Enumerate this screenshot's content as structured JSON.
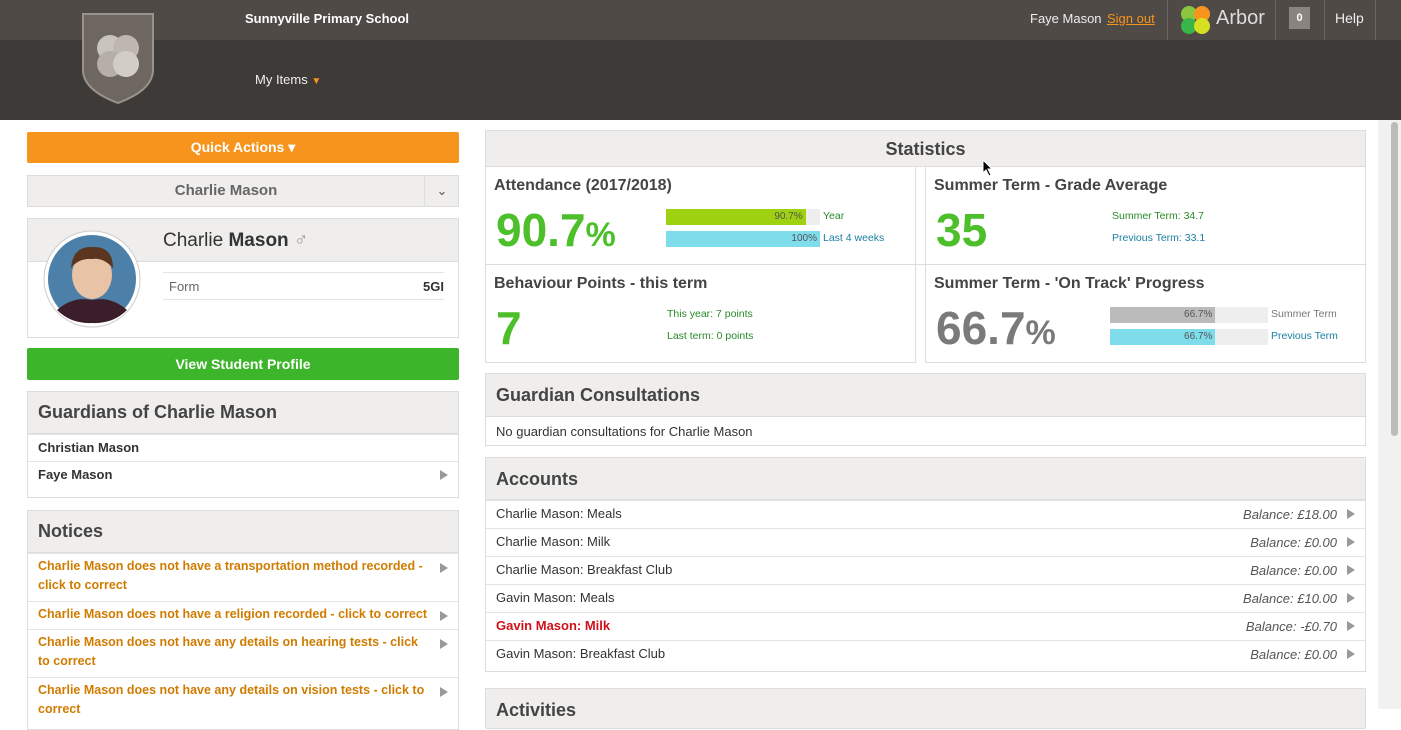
{
  "header": {
    "school": "Sunnyville Primary School",
    "nav": "My Items",
    "user": "Faye Mason",
    "sign_out": "Sign out",
    "brand": "Arbor",
    "badge": "0",
    "help": "Help"
  },
  "left": {
    "quick_actions": "Quick Actions",
    "student_select": "Charlie Mason",
    "profile": {
      "first_name": "Charlie",
      "last_name": "Mason",
      "field_label": "Form",
      "field_value": "5GI"
    },
    "view_profile": "View Student Profile",
    "guardians": {
      "title": "Guardians of Charlie Mason",
      "items": [
        "Christian Mason",
        "Faye Mason"
      ]
    },
    "notices": {
      "title": "Notices",
      "items": [
        "Charlie Mason does not have a transportation method recorded - click to correct",
        "Charlie Mason does not have a religion recorded - click to correct",
        "Charlie Mason does not have any details on hearing tests - click to correct",
        "Charlie Mason does not have any details on vision tests - click to correct"
      ]
    }
  },
  "statistics": {
    "title": "Statistics",
    "attendance": {
      "title": "Attendance (2017/2018)",
      "big": "90.7",
      "unit": "%",
      "bars": [
        {
          "value": 90.7,
          "label": "90.7%",
          "name": "Year"
        },
        {
          "value": 100,
          "label": "100%",
          "name": "Last 4 weeks"
        }
      ]
    },
    "grade": {
      "title": "Summer Term - Grade Average",
      "big": "35",
      "lines": [
        "Summer Term: 34.7",
        "Previous Term: 33.1"
      ]
    },
    "behaviour": {
      "title": "Behaviour Points - this term",
      "big": "7",
      "lines": [
        "This year: 7 points",
        "Last term: 0 points"
      ]
    },
    "progress": {
      "title": "Summer Term - 'On Track' Progress",
      "big": "66.7",
      "unit": "%",
      "bars": [
        {
          "value": 66.7,
          "label": "66.7%",
          "name": "Summer Term"
        },
        {
          "value": 66.7,
          "label": "66.7%",
          "name": "Previous Term"
        }
      ]
    }
  },
  "consultations": {
    "title": "Guardian Consultations",
    "text": "No guardian consultations for Charlie Mason"
  },
  "accounts": {
    "title": "Accounts",
    "rows": [
      {
        "name": "Charlie Mason: Meals",
        "balance": "Balance: £18.00"
      },
      {
        "name": "Charlie Mason: Milk",
        "balance": "Balance: £0.00"
      },
      {
        "name": "Charlie Mason: Breakfast Club",
        "balance": "Balance: £0.00"
      },
      {
        "name": "Gavin Mason: Meals",
        "balance": "Balance: £10.00"
      },
      {
        "name": "Gavin Mason: Milk",
        "balance": "Balance: -£0.70",
        "alert": true
      },
      {
        "name": "Gavin Mason: Breakfast Club",
        "balance": "Balance: £0.00"
      }
    ]
  },
  "activities": {
    "title": "Activities"
  }
}
